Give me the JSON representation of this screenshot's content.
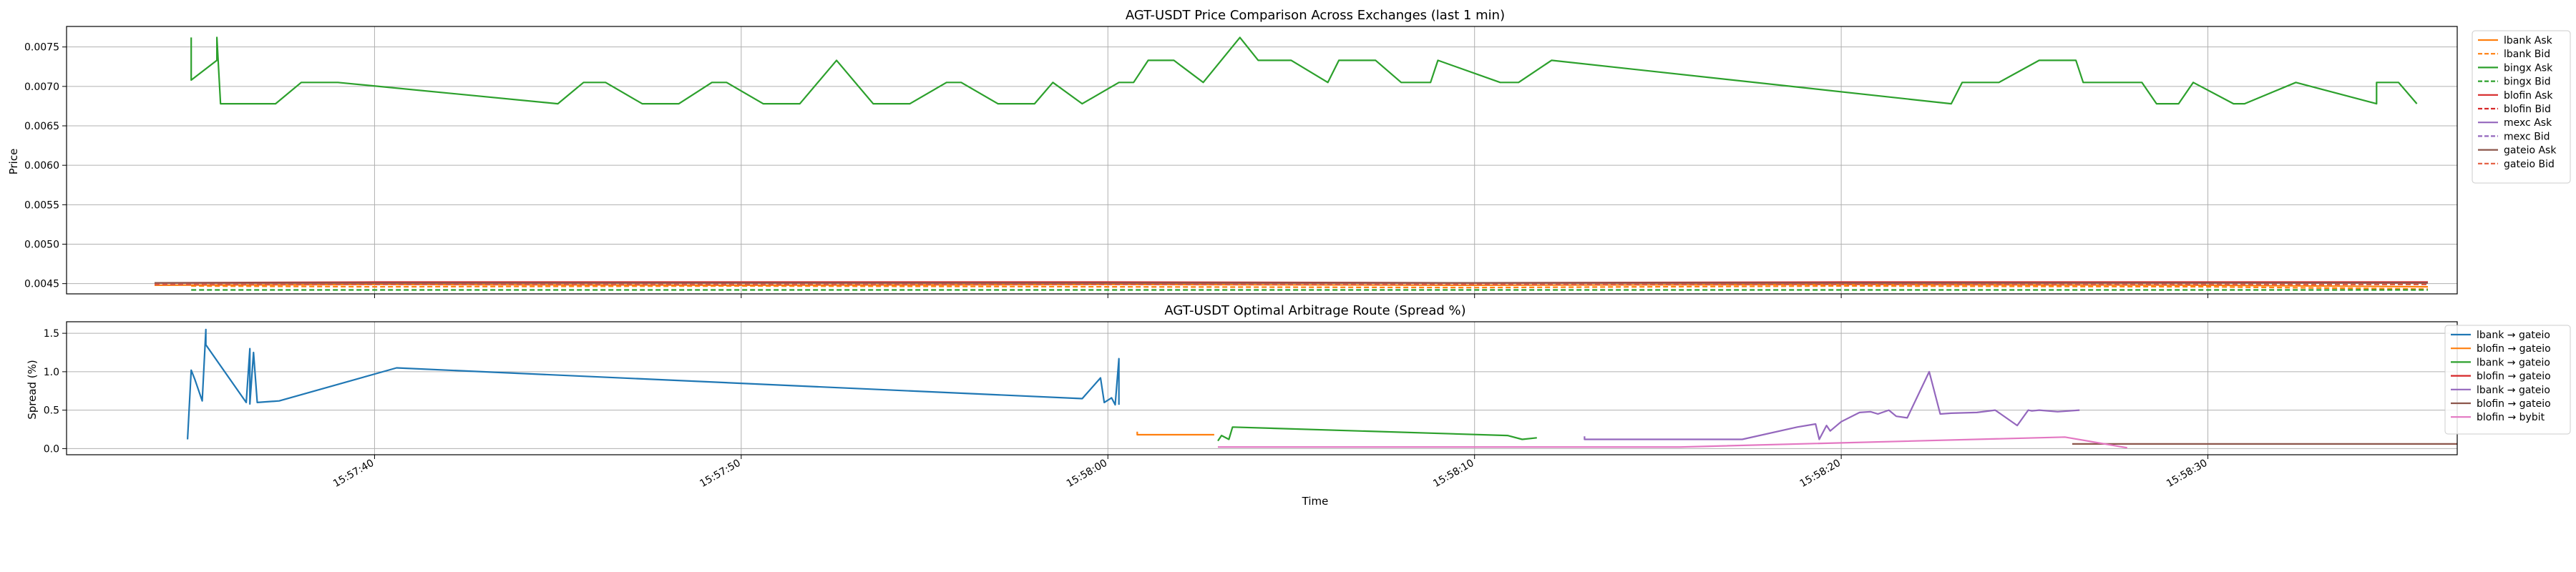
{
  "chart_data": [
    {
      "type": "line",
      "title": "AGT-USDT Price Comparison Across Exchanges (last 1 min)",
      "xlabel": "",
      "ylabel": "Price",
      "x_ticks": [
        "15:57:40",
        "15:57:50",
        "15:58:00",
        "15:58:10",
        "15:58:20",
        "15:58:30"
      ],
      "x_range": [
        "15:57:31.6",
        "15:58:36.8"
      ],
      "ylim": [
        0.00437,
        0.00776
      ],
      "y_ticks": [
        "0.0045",
        "0.0050",
        "0.0055",
        "0.0060",
        "0.0065",
        "0.0070",
        "0.0075"
      ],
      "grid": true,
      "legend_position": "right",
      "series": [
        {
          "name": "lbank Ask",
          "color": "#ff7f0e",
          "dash": "solid",
          "x": [
            "15:57:34",
            "15:57:40",
            "15:57:50",
            "15:58:00",
            "15:58:10",
            "15:58:20",
            "15:58:30",
            "15:58:36"
          ],
          "y": [
            0.00448,
            0.00449,
            0.00448,
            0.00449,
            0.00448,
            0.00449,
            0.00448,
            0.00446
          ]
        },
        {
          "name": "lbank Bid",
          "color": "#ff7f0e",
          "dash": "dashed",
          "x": [
            "15:57:35",
            "15:57:40",
            "15:57:50",
            "15:58:00",
            "15:58:10",
            "15:58:20",
            "15:58:30",
            "15:58:36"
          ],
          "y": [
            0.00447,
            0.00446,
            0.00447,
            0.00446,
            0.00445,
            0.00447,
            0.00446,
            0.00443
          ]
        },
        {
          "name": "bingx Ask",
          "color": "#2ca02c",
          "dash": "solid",
          "x": [
            "15:57:35",
            "15:57:35",
            "15:57:35.7",
            "15:57:35.7",
            "15:57:35.8",
            "15:57:37.3",
            "15:57:38",
            "15:57:39",
            "15:57:45",
            "15:57:45.7",
            "15:57:46.3",
            "15:57:47.3",
            "15:57:48.3",
            "15:57:49.2",
            "15:57:49.6",
            "15:57:50.6",
            "15:57:51.6",
            "15:57:52.6",
            "15:57:53.6",
            "15:57:54.6",
            "15:57:55.6",
            "15:57:56",
            "15:57:57",
            "15:57:58",
            "15:57:58.5",
            "15:57:59.3",
            "15:58:00.3",
            "15:58:00.7",
            "15:58:01.1",
            "15:58:01.8",
            "15:58:02.6",
            "15:58:03.6",
            "15:58:04.1",
            "15:58:05",
            "15:58:06",
            "15:58:06.3",
            "15:58:07.3",
            "15:58:08",
            "15:58:08.8",
            "15:58:09",
            "15:58:10.7",
            "15:58:11.2",
            "15:58:12.1",
            "15:58:23",
            "15:58:23.3",
            "15:58:24.3",
            "15:58:25.4",
            "15:58:26.4",
            "15:58:26.6",
            "15:58:28.2",
            "15:58:28.6",
            "15:58:29.2",
            "15:58:29.6",
            "15:58:30.7",
            "15:58:31",
            "15:58:32.4",
            "15:58:34.6",
            "15:58:34.6",
            "15:58:35.2",
            "15:58:35.7"
          ],
          "y": [
            0.00762,
            0.00708,
            0.00733,
            0.00762,
            0.00678,
            0.00678,
            0.00705,
            0.00705,
            0.00678,
            0.00705,
            0.00705,
            0.00678,
            0.00678,
            0.00705,
            0.00705,
            0.00678,
            0.00678,
            0.00733,
            0.00678,
            0.00678,
            0.00705,
            0.00705,
            0.00678,
            0.00678,
            0.00705,
            0.00678,
            0.00705,
            0.00705,
            0.00733,
            0.00733,
            0.00705,
            0.00762,
            0.00733,
            0.00733,
            0.00705,
            0.00733,
            0.00733,
            0.00705,
            0.00705,
            0.00733,
            0.00705,
            0.00705,
            0.00733,
            0.00678,
            0.00705,
            0.00705,
            0.00733,
            0.00733,
            0.00705,
            0.00705,
            0.00678,
            0.00678,
            0.00705,
            0.00678,
            0.00678,
            0.00705,
            0.00678,
            0.00705,
            0.00705,
            0.00678
          ]
        },
        {
          "name": "bingx Bid",
          "color": "#2ca02c",
          "dash": "dashed",
          "x": [
            "15:57:35",
            "15:57:40",
            "15:57:50",
            "15:58:00",
            "15:58:10",
            "15:58:20",
            "15:58:30",
            "15:58:36"
          ],
          "y": [
            0.00442,
            0.00442,
            0.00442,
            0.00442,
            0.00442,
            0.00442,
            0.00442,
            0.00442
          ]
        },
        {
          "name": "blofin Ask",
          "color": "#d62728",
          "dash": "solid",
          "x": [
            "15:57:34",
            "15:57:40",
            "15:57:50",
            "15:58:00",
            "15:58:10",
            "15:58:20",
            "15:58:30",
            "15:58:36"
          ],
          "y": [
            0.00451,
            0.00452,
            0.00452,
            0.00452,
            0.00451,
            0.00452,
            0.00452,
            0.00452
          ]
        },
        {
          "name": "blofin Bid",
          "color": "#d62728",
          "dash": "dashed",
          "x": [
            "15:57:34",
            "15:57:40",
            "15:57:50",
            "15:58:00",
            "15:58:10",
            "15:58:20",
            "15:58:30",
            "15:58:36"
          ],
          "y": [
            0.0045,
            0.0045,
            0.0045,
            0.0045,
            0.0045,
            0.0045,
            0.0045,
            0.0045
          ]
        },
        {
          "name": "mexc Ask",
          "color": "#9467bd",
          "dash": "solid",
          "x": [
            "15:57:34",
            "15:58:36"
          ],
          "y": [
            0.00451,
            0.00451
          ]
        },
        {
          "name": "mexc Bid",
          "color": "#9467bd",
          "dash": "dashed",
          "x": [
            "15:57:34",
            "15:58:36"
          ],
          "y": [
            0.00449,
            0.00449
          ]
        },
        {
          "name": "gateio Ask",
          "color": "#8c564b",
          "dash": "solid",
          "x": [
            "15:57:34",
            "15:58:36"
          ],
          "y": [
            0.00451,
            0.00451
          ]
        },
        {
          "name": "gateio Bid",
          "color": "#e45a3c",
          "dash": "dashed",
          "x": [
            "15:57:34",
            "15:58:36"
          ],
          "y": [
            0.00449,
            0.00449
          ]
        }
      ]
    },
    {
      "type": "line",
      "title": "AGT-USDT Optimal Arbitrage Route (Spread %)",
      "xlabel": "Time",
      "ylabel": "Spread (%)",
      "x_ticks": [
        "15:57:40",
        "15:57:50",
        "15:58:00",
        "15:58:10",
        "15:58:20",
        "15:58:30"
      ],
      "x_range": [
        "15:57:31.6",
        "15:58:36.8"
      ],
      "ylim": [
        -0.08,
        1.65
      ],
      "y_ticks": [
        "0.0",
        "0.5",
        "1.0",
        "1.5"
      ],
      "grid": true,
      "legend_position": "right",
      "series": [
        {
          "name": "lbank → gateio",
          "color": "#1f77b4",
          "x": [
            "15:57:34.9",
            "15:57:35.0",
            "15:57:35.1",
            "15:57:35.3",
            "15:57:35.4",
            "15:57:35.4",
            "15:57:36.5",
            "15:57:36.6",
            "15:57:36.6",
            "15:57:36.7",
            "15:57:36.8",
            "15:57:37.4",
            "15:57:40.6",
            "15:57:59.3",
            "15:57:59.8",
            "15:57:59.9",
            "15:58:00.1",
            "15:58:00.2",
            "15:58:00.3",
            "15:58:00.3"
          ],
          "y": [
            0.12,
            1.02,
            0.9,
            0.62,
            1.55,
            1.35,
            0.6,
            1.3,
            0.58,
            1.25,
            0.6,
            0.62,
            1.05,
            0.65,
            0.92,
            0.6,
            0.66,
            0.57,
            1.17,
            0.57
          ]
        },
        {
          "name": "blofin → gateio",
          "color": "#ff7f0e",
          "x": [
            "15:58:00.8",
            "15:58:00.8",
            "15:58:02.9"
          ],
          "y": [
            0.22,
            0.18,
            0.18
          ]
        },
        {
          "name": "lbank → gateio",
          "color": "#2ca02c",
          "x": [
            "15:58:03.0",
            "15:58:03.1",
            "15:58:03.3",
            "15:58:03.4",
            "15:58:10.9",
            "15:58:11.3",
            "15:58:11.7"
          ],
          "y": [
            0.1,
            0.17,
            0.12,
            0.28,
            0.17,
            0.12,
            0.14
          ]
        },
        {
          "name": "blofin → gateio",
          "color": "#d62728",
          "x": [],
          "y": []
        },
        {
          "name": "lbank → gateio",
          "color": "#9467bd",
          "x": [
            "15:58:13.0",
            "15:58:13.0",
            "15:58:17.3",
            "15:58:18.8",
            "15:58:19.3",
            "15:58:19.4",
            "15:58:19.6",
            "15:58:19.7",
            "15:58:20.0",
            "15:58:20.5",
            "15:58:20.8",
            "15:58:21.0",
            "15:58:21.3",
            "15:58:21.5",
            "15:58:21.8",
            "15:58:22.4",
            "15:58:22.7",
            "15:58:23.0",
            "15:58:23.7",
            "15:58:24.2",
            "15:58:24.8",
            "15:58:25.1",
            "15:58:25.2",
            "15:58:25.4",
            "15:58:25.9",
            "15:58:26.5"
          ],
          "y": [
            0.16,
            0.12,
            0.12,
            0.28,
            0.32,
            0.12,
            0.3,
            0.23,
            0.35,
            0.47,
            0.48,
            0.45,
            0.5,
            0.42,
            0.4,
            1.0,
            0.45,
            0.46,
            0.47,
            0.5,
            0.3,
            0.5,
            0.49,
            0.5,
            0.48,
            0.5
          ]
        },
        {
          "name": "blofin → gateio",
          "color": "#8c564b",
          "x": [
            "15:58:26.3",
            "15:58:36.8"
          ],
          "y": [
            0.06,
            0.06
          ]
        },
        {
          "name": "blofin → bybit",
          "color": "#e377c2",
          "x": [
            "15:58:03.0",
            "15:58:15.6",
            "15:58:26.1",
            "15:58:27.8"
          ],
          "y": [
            0.02,
            0.02,
            0.15,
            0.01
          ]
        }
      ]
    }
  ]
}
